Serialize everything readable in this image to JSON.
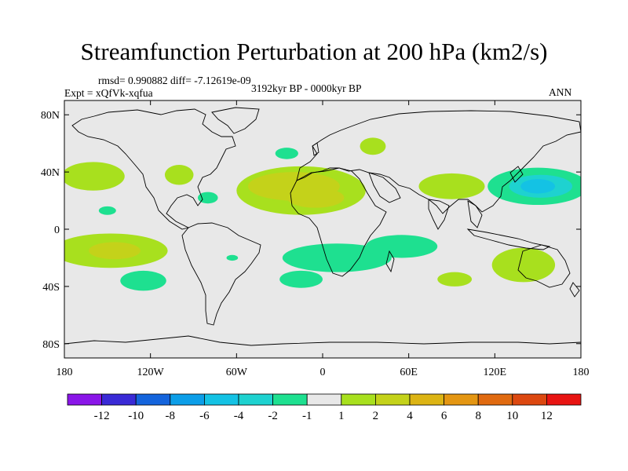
{
  "title": "Streamfunction Perturbation at 200 hPa (km2/s)",
  "stats": "rmsd= 0.990882 diff= -7.12619e-09",
  "experiment": "Expt = xQfVk-xqfua",
  "period": "3192kyr BP - 0000kyr BP",
  "season": "ANN",
  "lat_labels": [
    {
      "text": "80N",
      "lat": 80
    },
    {
      "text": "40N",
      "lat": 40
    },
    {
      "text": "0",
      "lat": 0
    },
    {
      "text": "40S",
      "lat": -40
    },
    {
      "text": "80S",
      "lat": -80
    }
  ],
  "lon_labels": [
    {
      "text": "180",
      "lon": -180
    },
    {
      "text": "120W",
      "lon": -120
    },
    {
      "text": "60W",
      "lon": -60
    },
    {
      "text": "0",
      "lon": 0
    },
    {
      "text": "60E",
      "lon": 60
    },
    {
      "text": "120E",
      "lon": 120
    },
    {
      "text": "180",
      "lon": 180
    }
  ],
  "colorbar": {
    "colors": [
      "#8a16e8",
      "#3a2ad6",
      "#1464dc",
      "#0c9ee8",
      "#14c2e4",
      "#1ed2d0",
      "#1ee090",
      "#e8e8e8",
      "#a8e01e",
      "#c4d21a",
      "#dcb414",
      "#e49612",
      "#e06a10",
      "#dc4810",
      "#e81412"
    ],
    "labels": [
      "-12",
      "-10",
      "-8",
      "-6",
      "-4",
      "-2",
      "-1",
      "1",
      "2",
      "4",
      "6",
      "8",
      "10",
      "12"
    ]
  },
  "chart_data": {
    "type": "filled-contour-map",
    "title": "Streamfunction Perturbation at 200 hPa (km2/s)",
    "levels": [
      -12,
      -10,
      -8,
      -6,
      -4,
      -2,
      -1,
      1,
      2,
      4,
      6,
      8,
      10,
      12
    ],
    "xlim": [
      -180,
      180
    ],
    "ylim": [
      -90,
      90
    ],
    "features": [
      {
        "name": "n-pacific-low",
        "lon": 150,
        "lat": 30,
        "rx": 35,
        "ry": 13,
        "fill": "#1ee090"
      },
      {
        "name": "n-pacific-low-core",
        "lon": 152,
        "lat": 30,
        "rx": 22,
        "ry": 8,
        "fill": "#1ed2d0"
      },
      {
        "name": "n-pacific-low-inner",
        "lon": 150,
        "lat": 30,
        "rx": 12,
        "ry": 5,
        "fill": "#14c2e4"
      },
      {
        "name": "e-pacific-high",
        "lon": -160,
        "lat": 37,
        "rx": 22,
        "ry": 10,
        "fill": "#a8e01e"
      },
      {
        "name": "atlantic-high",
        "lon": -15,
        "lat": 27,
        "rx": 45,
        "ry": 17,
        "fill": "#a8e01e"
      },
      {
        "name": "atlantic-high-core",
        "lon": -20,
        "lat": 30,
        "rx": 32,
        "ry": 10,
        "fill": "#c4d21a"
      },
      {
        "name": "atlantic-high-core2",
        "lon": -5,
        "lat": 22,
        "rx": 20,
        "ry": 7,
        "fill": "#c4d21a"
      },
      {
        "name": "n-america-high",
        "lon": -100,
        "lat": 38,
        "rx": 10,
        "ry": 7,
        "fill": "#a8e01e"
      },
      {
        "name": "scandinavia-high",
        "lon": 35,
        "lat": 58,
        "rx": 9,
        "ry": 6,
        "fill": "#a8e01e"
      },
      {
        "name": "n-atlantic-low",
        "lon": -25,
        "lat": 53,
        "rx": 8,
        "ry": 4,
        "fill": "#1ee090"
      },
      {
        "name": "india-high",
        "lon": 90,
        "lat": 30,
        "rx": 23,
        "ry": 9,
        "fill": "#a8e01e"
      },
      {
        "name": "caribbean-low",
        "lon": -80,
        "lat": 22,
        "rx": 7,
        "ry": 4,
        "fill": "#1ee090"
      },
      {
        "name": "e-pacific-low",
        "lon": -150,
        "lat": 13,
        "rx": 6,
        "ry": 3,
        "fill": "#1ee090"
      },
      {
        "name": "s-pacific-high",
        "lon": -148,
        "lat": -15,
        "rx": 40,
        "ry": 12,
        "fill": "#a8e01e"
      },
      {
        "name": "s-pacific-high-core",
        "lon": -145,
        "lat": -15,
        "rx": 18,
        "ry": 6,
        "fill": "#c4d21a"
      },
      {
        "name": "s-pacific-low",
        "lon": -125,
        "lat": -36,
        "rx": 16,
        "ry": 7,
        "fill": "#1ee090"
      },
      {
        "name": "s-atlantic-low",
        "lon": 10,
        "lat": -20,
        "rx": 38,
        "ry": 10,
        "fill": "#1ee090"
      },
      {
        "name": "s-indian-low",
        "lon": 55,
        "lat": -12,
        "rx": 25,
        "ry": 8,
        "fill": "#1ee090"
      },
      {
        "name": "s-atlantic-tail",
        "lon": -15,
        "lat": -35,
        "rx": 15,
        "ry": 6,
        "fill": "#1ee090"
      },
      {
        "name": "s-indian-high",
        "lon": 92,
        "lat": -35,
        "rx": 12,
        "ry": 5,
        "fill": "#a8e01e"
      },
      {
        "name": "australia-high",
        "lon": 140,
        "lat": -25,
        "rx": 22,
        "ry": 12,
        "fill": "#a8e01e"
      },
      {
        "name": "s-america-low",
        "lon": -63,
        "lat": -20,
        "rx": 4,
        "ry": 2,
        "fill": "#1ee090"
      }
    ]
  }
}
